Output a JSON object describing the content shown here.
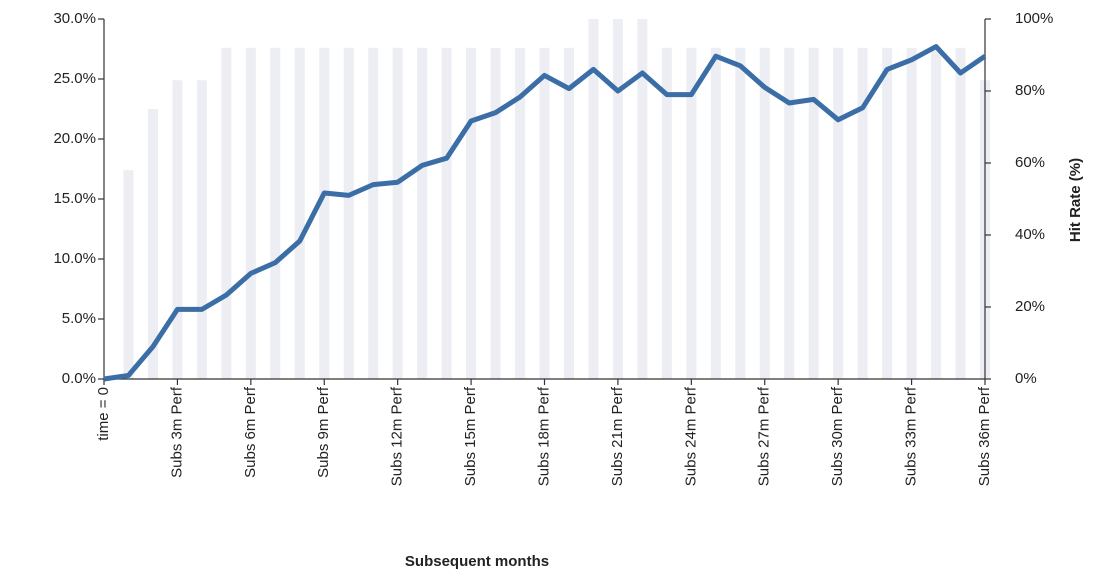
{
  "chart_data": {
    "type": "combo",
    "categories": [
      "time = 0",
      null,
      null,
      "Subs 3m Perf",
      null,
      null,
      "Subs 6m Perf",
      null,
      null,
      "Subs 9m Perf",
      null,
      null,
      "Subs 12m Perf",
      null,
      null,
      "Subs 15m Perf",
      null,
      null,
      "Subs 18m Perf",
      null,
      null,
      "Subs 21m Perf",
      null,
      null,
      "Subs 24m Perf",
      null,
      null,
      "Subs 27m Perf",
      null,
      null,
      "Subs 30m Perf",
      null,
      null,
      "Subs 33m Perf",
      null,
      null,
      "Subs 36m Perf"
    ],
    "series": [
      {
        "type": "bar",
        "axis": "y2",
        "color": "#eceef4",
        "values": [
          null,
          58,
          75,
          83,
          83,
          92,
          92,
          92,
          92,
          92,
          92,
          92,
          92,
          92,
          92,
          92,
          92,
          92,
          92,
          92,
          100,
          100,
          100,
          92,
          92,
          92,
          92,
          92,
          92,
          92,
          92,
          92,
          92,
          92,
          92,
          92,
          83
        ]
      },
      {
        "type": "line",
        "axis": "y",
        "color": "#3b6ea6",
        "values": [
          0.0,
          0.3,
          2.7,
          5.8,
          5.8,
          7.0,
          8.8,
          9.7,
          11.5,
          15.5,
          15.3,
          16.2,
          16.4,
          17.8,
          18.4,
          21.5,
          22.2,
          23.5,
          25.3,
          24.2,
          25.8,
          24.0,
          25.5,
          23.7,
          23.7,
          26.9,
          26.1,
          24.3,
          23.0,
          23.3,
          21.6,
          22.6,
          25.8,
          26.6,
          27.7,
          25.5,
          26.9
        ]
      }
    ],
    "ylim": [
      0,
      30
    ],
    "yticks": [
      {
        "value": 0,
        "label": "0.0%"
      },
      {
        "value": 5,
        "label": "5.0%"
      },
      {
        "value": 10,
        "label": "10.0%"
      },
      {
        "value": 15,
        "label": "15.0%"
      },
      {
        "value": 20,
        "label": "20.0%"
      },
      {
        "value": 25,
        "label": "25.0%"
      },
      {
        "value": 30,
        "label": "30.0%"
      }
    ],
    "y2lim": [
      0,
      100
    ],
    "y2ticks": [
      {
        "value": 0,
        "label": "0%"
      },
      {
        "value": 20,
        "label": "20%"
      },
      {
        "value": 40,
        "label": "40%"
      },
      {
        "value": 60,
        "label": "60%"
      },
      {
        "value": 80,
        "label": "80%"
      },
      {
        "value": 100,
        "label": "100%"
      }
    ],
    "xlabel": "Subsequent months",
    "y2label": "Hit Rate (%)"
  }
}
